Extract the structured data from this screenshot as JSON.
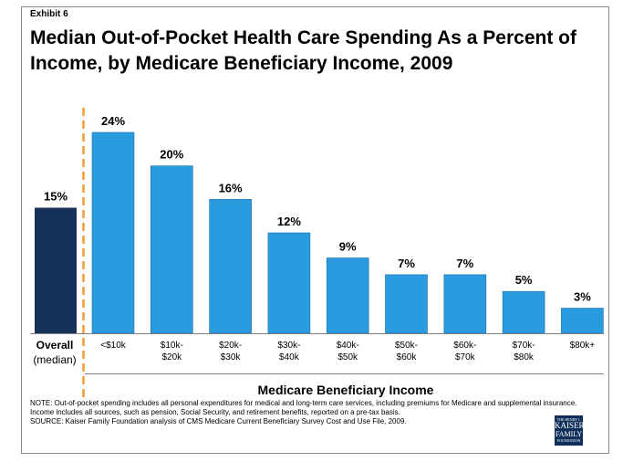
{
  "exhibit_label": "Exhibit 6",
  "title": "Median Out-of-Pocket  Health Care Spending As a Percent of Income, by Medicare Beneficiary Income, 2009",
  "notes": {
    "note": "NOTE: Out-of-pocket  spending includes all personal expenditures for medical and long-term care services, including premiums for Medicare and supplemental insurance. Income includes all sources, such as pension, Social Security, and retirement benefits, reported on a pre-tax basis.",
    "source": "SOURCE: Kaiser Family Foundation analysis of CMS Medicare Current Beneficiary Survey Cost and Use File,  2009."
  },
  "logo": {
    "line1": "THE HENRY J.",
    "line2": "KAISER",
    "line3": "FAMILY",
    "line4": "FOUNDATION"
  },
  "colors": {
    "overall_bar": "#16325a",
    "income_bars": "#2b9be0",
    "divider": "#f39a38"
  },
  "chart_data": {
    "type": "bar",
    "title": "Median Out-of-Pocket  Health Care Spending As a Percent of Income, by Medicare Beneficiary Income, 2009",
    "xlabel": "Medicare Beneficiary Income",
    "ylabel": "",
    "ylim": [
      0,
      24
    ],
    "grid": false,
    "legend": "none",
    "unit": "%",
    "overall": {
      "label_line1": "Overall",
      "label_line2": "(median)",
      "value": 15,
      "value_label": "15%"
    },
    "categories": [
      [
        "<$10k"
      ],
      [
        "$10k-",
        "$20k"
      ],
      [
        "$20k-",
        "$30k"
      ],
      [
        "$30k-",
        "$40k"
      ],
      [
        "$40k-",
        "$50k"
      ],
      [
        "$50k-",
        "$60k"
      ],
      [
        "$60k-",
        "$70k"
      ],
      [
        "$70k-",
        "$80k"
      ],
      [
        "$80k+"
      ]
    ],
    "values": [
      24,
      20,
      16,
      12,
      9,
      7,
      7,
      5,
      3
    ],
    "value_labels": [
      "24%",
      "20%",
      "16%",
      "12%",
      "9%",
      "7%",
      "7%",
      "5%",
      "3%"
    ]
  }
}
